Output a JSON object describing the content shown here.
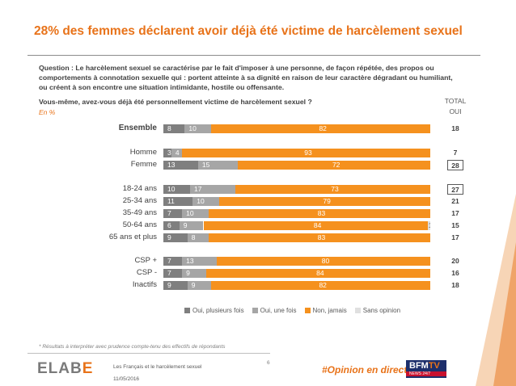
{
  "title": "28% des femmes déclarent avoir déjà été victime de harcèlement sexuel",
  "question": "Question : Le harcèlement sexuel se caractérise par le fait d'imposer à une personne, de façon répétée, des propos ou comportements à connotation sexuelle qui : portent atteinte à sa dignité en raison de leur caractère dégradant ou humiliant, ou créent à son encontre une situation intimidante, hostile ou offensante.",
  "question2": "Vous-même, avez-vous déjà été personnellement victime de harcèlement sexuel ?",
  "unit": "En %",
  "total_header": "TOTAL OUI",
  "colors": {
    "accent": "#e8731a",
    "oui_plusieurs": "#7f7f7f",
    "oui_une_fois": "#a6a6a6",
    "non_jamais": "#f5911e",
    "sans_opinion": "#e0e0e0"
  },
  "chart_data": {
    "type": "bar",
    "orientation": "horizontal",
    "stacked": true,
    "xlim": [
      0,
      100
    ],
    "categories": [
      "Ensemble",
      "Homme",
      "Femme",
      "18-24 ans",
      "25-34 ans",
      "35-49 ans",
      "50-64 ans",
      "65 ans et plus",
      "CSP +",
      "CSP -",
      "Inactifs"
    ],
    "series": [
      {
        "name": "Oui, plusieurs fois",
        "values": [
          8,
          3,
          13,
          10,
          11,
          7,
          6,
          9,
          7,
          7,
          9
        ]
      },
      {
        "name": "Oui, une fois",
        "values": [
          10,
          4,
          15,
          17,
          10,
          10,
          9,
          8,
          13,
          9,
          9
        ]
      },
      {
        "name": "Non, jamais",
        "values": [
          82,
          93,
          72,
          73,
          79,
          83,
          84,
          83,
          80,
          84,
          82
        ]
      },
      {
        "name": "Sans opinion",
        "values": [
          0,
          0,
          0,
          0,
          0,
          0,
          1,
          0,
          0,
          0,
          0
        ]
      }
    ],
    "total_oui": [
      18,
      7,
      28,
      27,
      21,
      17,
      15,
      17,
      20,
      16,
      18
    ],
    "total_boxed": [
      false,
      false,
      true,
      true,
      false,
      false,
      false,
      false,
      false,
      false,
      false
    ],
    "legend_position": "bottom"
  },
  "footer": {
    "note": "* Résultats à interpréter avec prudence compte-tenu des effectifs de répondants",
    "logo_main": "ELAB",
    "logo_accent": "E",
    "document": "Les Français et le harcèlement sexuel",
    "date": "11/05/2016",
    "page": "6",
    "hashtag": "#Opinion en direct",
    "bfm_main": "BFM",
    "bfm_accent": "TV",
    "bfm_sub": "NEWS 24/7"
  }
}
